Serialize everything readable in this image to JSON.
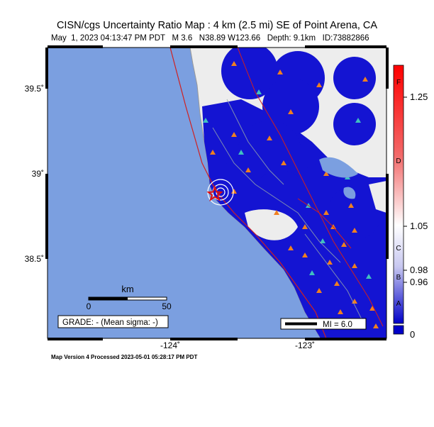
{
  "header": {
    "title": "CISN/cgs Uncertainty Ratio Map : 4 km (2.5 mi) SE of Point Arena, CA",
    "subtitle": "May  1, 2023 04:13:47 PM PDT   M 3.6   N38.89 W123.66   Depth: 9.1km   ID:73882866"
  },
  "map": {
    "lat_labels": [
      "39.5˚",
      "39˚",
      "38.5˚"
    ],
    "lon_labels": [
      "-124˚",
      "-123˚"
    ],
    "scale_bar": {
      "unit": "km",
      "start": "0",
      "end": "50"
    },
    "grade": "GRADE: - (Mean sigma: -)",
    "mi_legend": "MI = 6.0"
  },
  "colorbar": {
    "letters": [
      "F",
      "D",
      "C",
      "B",
      "A"
    ],
    "values": [
      "1.25",
      "1.05",
      "0.98",
      "0.96",
      "0"
    ]
  },
  "footer": "Map Version 4 Processed 2023-05-01 05:28:17 PM PDT"
}
